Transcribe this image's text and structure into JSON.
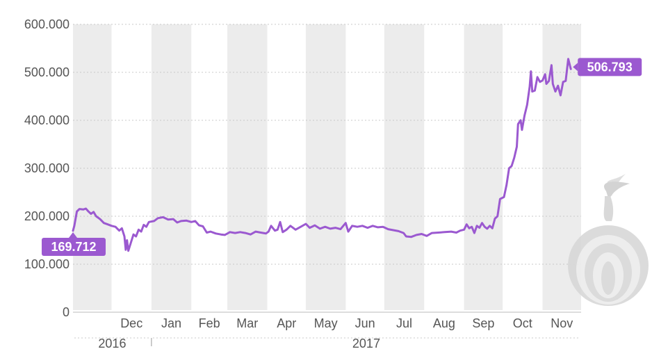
{
  "chart_data": {
    "type": "line",
    "title": "",
    "xlabel": "",
    "ylabel": "",
    "ylim": [
      0,
      600000
    ],
    "yticks": [
      {
        "value": 0,
        "label": "0"
      },
      {
        "value": 100000,
        "label": "100.000"
      },
      {
        "value": 200000,
        "label": "200.000"
      },
      {
        "value": 300000,
        "label": "300.000"
      },
      {
        "value": 400000,
        "label": "400.000"
      },
      {
        "value": 500000,
        "label": "500.000"
      },
      {
        "value": 600000,
        "label": "600.000"
      }
    ],
    "xlim": [
      "2016-11-01",
      "2017-11-30"
    ],
    "month_ticks": [
      {
        "label": "Dec",
        "start": "2016-12-01",
        "end": "2016-12-31"
      },
      {
        "label": "Jan",
        "start": "2017-01-01",
        "end": "2017-01-31"
      },
      {
        "label": "Feb",
        "start": "2017-02-01",
        "end": "2017-02-28"
      },
      {
        "label": "Mar",
        "start": "2017-03-01",
        "end": "2017-03-31"
      },
      {
        "label": "Apr",
        "start": "2017-04-01",
        "end": "2017-04-30"
      },
      {
        "label": "May",
        "start": "2017-05-01",
        "end": "2017-05-31"
      },
      {
        "label": "Jun",
        "start": "2017-06-01",
        "end": "2017-06-30"
      },
      {
        "label": "Jul",
        "start": "2017-07-01",
        "end": "2017-07-31"
      },
      {
        "label": "Aug",
        "start": "2017-08-01",
        "end": "2017-08-31"
      },
      {
        "label": "Sep",
        "start": "2017-09-01",
        "end": "2017-09-30"
      },
      {
        "label": "Oct",
        "start": "2017-10-01",
        "end": "2017-10-31"
      },
      {
        "label": "Nov",
        "start": "2017-11-01",
        "end": "2017-11-30"
      }
    ],
    "year_ticks": [
      {
        "label": "2016",
        "start": "2016-11-01",
        "end": "2016-12-31"
      },
      {
        "label": "2017",
        "start": "2017-01-01",
        "end": "2017-11-30"
      }
    ],
    "shaded_months": [
      "2016-11",
      "2017-01",
      "2017-03",
      "2017-05",
      "2017-07",
      "2017-09",
      "2017-11"
    ],
    "grid": true,
    "series": [
      {
        "color": "#9b59d0",
        "points": [
          [
            "2016-11-01",
            169712
          ],
          [
            "2016-11-02",
            180000
          ],
          [
            "2016-11-04",
            210000
          ],
          [
            "2016-11-06",
            215000
          ],
          [
            "2016-11-09",
            214000
          ],
          [
            "2016-11-11",
            216000
          ],
          [
            "2016-11-13",
            210000
          ],
          [
            "2016-11-15",
            205000
          ],
          [
            "2016-11-17",
            209000
          ],
          [
            "2016-11-19",
            200000
          ],
          [
            "2016-11-22",
            194000
          ],
          [
            "2016-11-25",
            186000
          ],
          [
            "2016-11-28",
            183000
          ],
          [
            "2016-12-01",
            180000
          ],
          [
            "2016-12-04",
            178000
          ],
          [
            "2016-12-07",
            170000
          ],
          [
            "2016-12-09",
            175000
          ],
          [
            "2016-12-11",
            158000
          ],
          [
            "2016-12-12",
            130000
          ],
          [
            "2016-12-13",
            150000
          ],
          [
            "2016-12-14",
            128000
          ],
          [
            "2016-12-16",
            145000
          ],
          [
            "2016-12-18",
            162000
          ],
          [
            "2016-12-20",
            158000
          ],
          [
            "2016-12-22",
            172000
          ],
          [
            "2016-12-24",
            168000
          ],
          [
            "2016-12-26",
            182000
          ],
          [
            "2016-12-28",
            178000
          ],
          [
            "2016-12-30",
            188000
          ],
          [
            "2017-01-03",
            190000
          ],
          [
            "2017-01-06",
            196000
          ],
          [
            "2017-01-10",
            198000
          ],
          [
            "2017-01-14",
            193000
          ],
          [
            "2017-01-18",
            194000
          ],
          [
            "2017-01-21",
            187000
          ],
          [
            "2017-01-24",
            190000
          ],
          [
            "2017-01-28",
            191000
          ],
          [
            "2017-02-01",
            188000
          ],
          [
            "2017-02-04",
            190000
          ],
          [
            "2017-02-07",
            181000
          ],
          [
            "2017-02-10",
            179000
          ],
          [
            "2017-02-13",
            166000
          ],
          [
            "2017-02-16",
            168000
          ],
          [
            "2017-02-20",
            164000
          ],
          [
            "2017-02-24",
            162000
          ],
          [
            "2017-02-27",
            161000
          ],
          [
            "2017-03-03",
            167000
          ],
          [
            "2017-03-07",
            165000
          ],
          [
            "2017-03-11",
            167000
          ],
          [
            "2017-03-15",
            165000
          ],
          [
            "2017-03-19",
            162000
          ],
          [
            "2017-03-23",
            168000
          ],
          [
            "2017-03-27",
            166000
          ],
          [
            "2017-03-31",
            164000
          ],
          [
            "2017-04-02",
            168000
          ],
          [
            "2017-04-04",
            180000
          ],
          [
            "2017-04-07",
            170000
          ],
          [
            "2017-04-09",
            172000
          ],
          [
            "2017-04-11",
            188000
          ],
          [
            "2017-04-13",
            167000
          ],
          [
            "2017-04-16",
            172000
          ],
          [
            "2017-04-19",
            180000
          ],
          [
            "2017-04-23",
            172000
          ],
          [
            "2017-04-27",
            178000
          ],
          [
            "2017-05-01",
            184000
          ],
          [
            "2017-05-04",
            176000
          ],
          [
            "2017-05-08",
            181000
          ],
          [
            "2017-05-12",
            174000
          ],
          [
            "2017-05-16",
            178000
          ],
          [
            "2017-05-20",
            174000
          ],
          [
            "2017-05-24",
            176000
          ],
          [
            "2017-05-28",
            173000
          ],
          [
            "2017-06-01",
            186000
          ],
          [
            "2017-06-03",
            168000
          ],
          [
            "2017-06-06",
            180000
          ],
          [
            "2017-06-10",
            178000
          ],
          [
            "2017-06-14",
            180000
          ],
          [
            "2017-06-18",
            176000
          ],
          [
            "2017-06-22",
            180000
          ],
          [
            "2017-06-26",
            177000
          ],
          [
            "2017-06-30",
            178000
          ],
          [
            "2017-07-04",
            173000
          ],
          [
            "2017-07-08",
            171000
          ],
          [
            "2017-07-12",
            169000
          ],
          [
            "2017-07-16",
            165000
          ],
          [
            "2017-07-18",
            158000
          ],
          [
            "2017-07-22",
            157000
          ],
          [
            "2017-07-26",
            161000
          ],
          [
            "2017-07-30",
            163000
          ],
          [
            "2017-08-03",
            159000
          ],
          [
            "2017-08-07",
            165000
          ],
          [
            "2017-08-12",
            166000
          ],
          [
            "2017-08-17",
            167000
          ],
          [
            "2017-08-22",
            168000
          ],
          [
            "2017-08-26",
            166000
          ],
          [
            "2017-08-29",
            170000
          ],
          [
            "2017-09-01",
            172000
          ],
          [
            "2017-09-03",
            183000
          ],
          [
            "2017-09-05",
            175000
          ],
          [
            "2017-09-07",
            178000
          ],
          [
            "2017-09-09",
            165000
          ],
          [
            "2017-09-11",
            180000
          ],
          [
            "2017-09-13",
            176000
          ],
          [
            "2017-09-15",
            186000
          ],
          [
            "2017-09-17",
            178000
          ],
          [
            "2017-09-19",
            174000
          ],
          [
            "2017-09-21",
            180000
          ],
          [
            "2017-09-23",
            175000
          ],
          [
            "2017-09-25",
            195000
          ],
          [
            "2017-09-27",
            200000
          ],
          [
            "2017-09-29",
            236000
          ],
          [
            "2017-10-02",
            240000
          ],
          [
            "2017-10-04",
            265000
          ],
          [
            "2017-10-06",
            300000
          ],
          [
            "2017-10-08",
            305000
          ],
          [
            "2017-10-10",
            322000
          ],
          [
            "2017-10-12",
            345000
          ],
          [
            "2017-10-13",
            392000
          ],
          [
            "2017-10-15",
            400000
          ],
          [
            "2017-10-16",
            380000
          ],
          [
            "2017-10-18",
            410000
          ],
          [
            "2017-10-20",
            432000
          ],
          [
            "2017-10-22",
            470000
          ],
          [
            "2017-10-23",
            502000
          ],
          [
            "2017-10-24",
            460000
          ],
          [
            "2017-10-26",
            462000
          ],
          [
            "2017-10-28",
            490000
          ],
          [
            "2017-10-30",
            480000
          ],
          [
            "2017-11-01",
            483000
          ],
          [
            "2017-11-03",
            496000
          ],
          [
            "2017-11-04",
            476000
          ],
          [
            "2017-11-06",
            482000
          ],
          [
            "2017-11-08",
            515000
          ],
          [
            "2017-11-09",
            476000
          ],
          [
            "2017-11-11",
            460000
          ],
          [
            "2017-11-13",
            472000
          ],
          [
            "2017-11-15",
            452000
          ],
          [
            "2017-11-17",
            480000
          ],
          [
            "2017-11-19",
            482000
          ],
          [
            "2017-11-21",
            528000
          ],
          [
            "2017-11-23",
            506793
          ]
        ]
      }
    ],
    "annotations": [
      {
        "date": "2016-11-01",
        "value": 169712,
        "label": "169.712",
        "placement": "below-left"
      },
      {
        "date": "2017-11-23",
        "value": 506793,
        "label": "506.793",
        "placement": "right"
      }
    ]
  },
  "decor": {
    "watermark_icon": "onion-icon"
  }
}
